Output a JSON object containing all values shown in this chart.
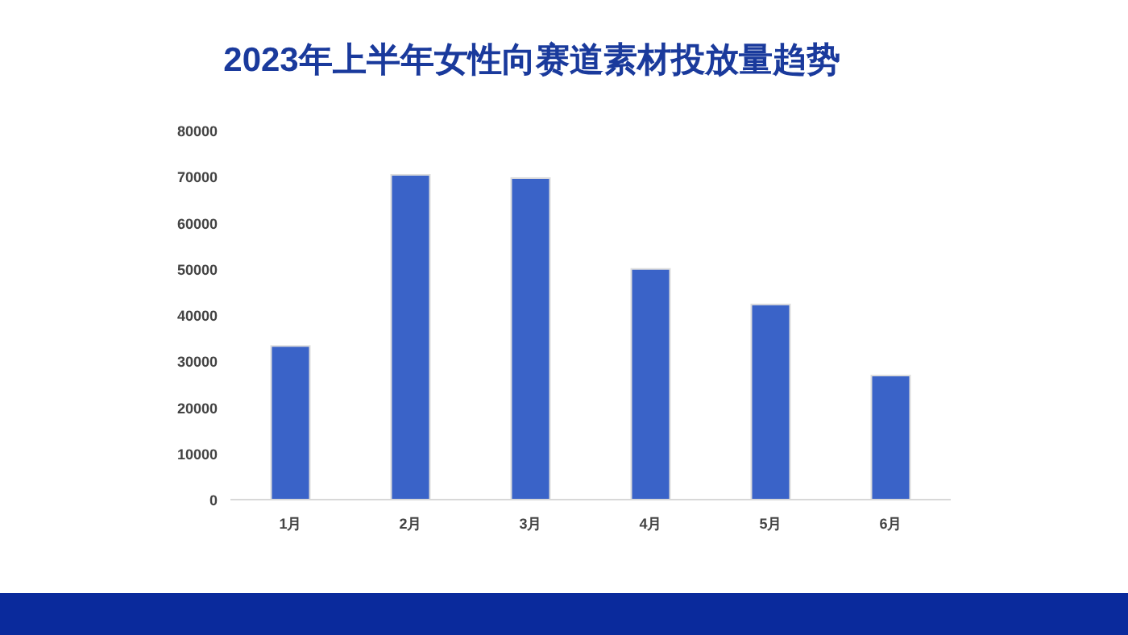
{
  "chart_data": {
    "type": "bar",
    "title": "2023年上半年女性向赛道素材投放量趋势",
    "categories": [
      "1月",
      "2月",
      "3月",
      "4月",
      "5月",
      "6月"
    ],
    "values": [
      33300,
      70400,
      69700,
      50000,
      42300,
      26900
    ],
    "color": "#3a63c8",
    "ylim": [
      0,
      80000
    ],
    "yticks": [
      0,
      10000,
      20000,
      30000,
      40000,
      50000,
      60000,
      70000,
      80000
    ],
    "grid": false
  }
}
